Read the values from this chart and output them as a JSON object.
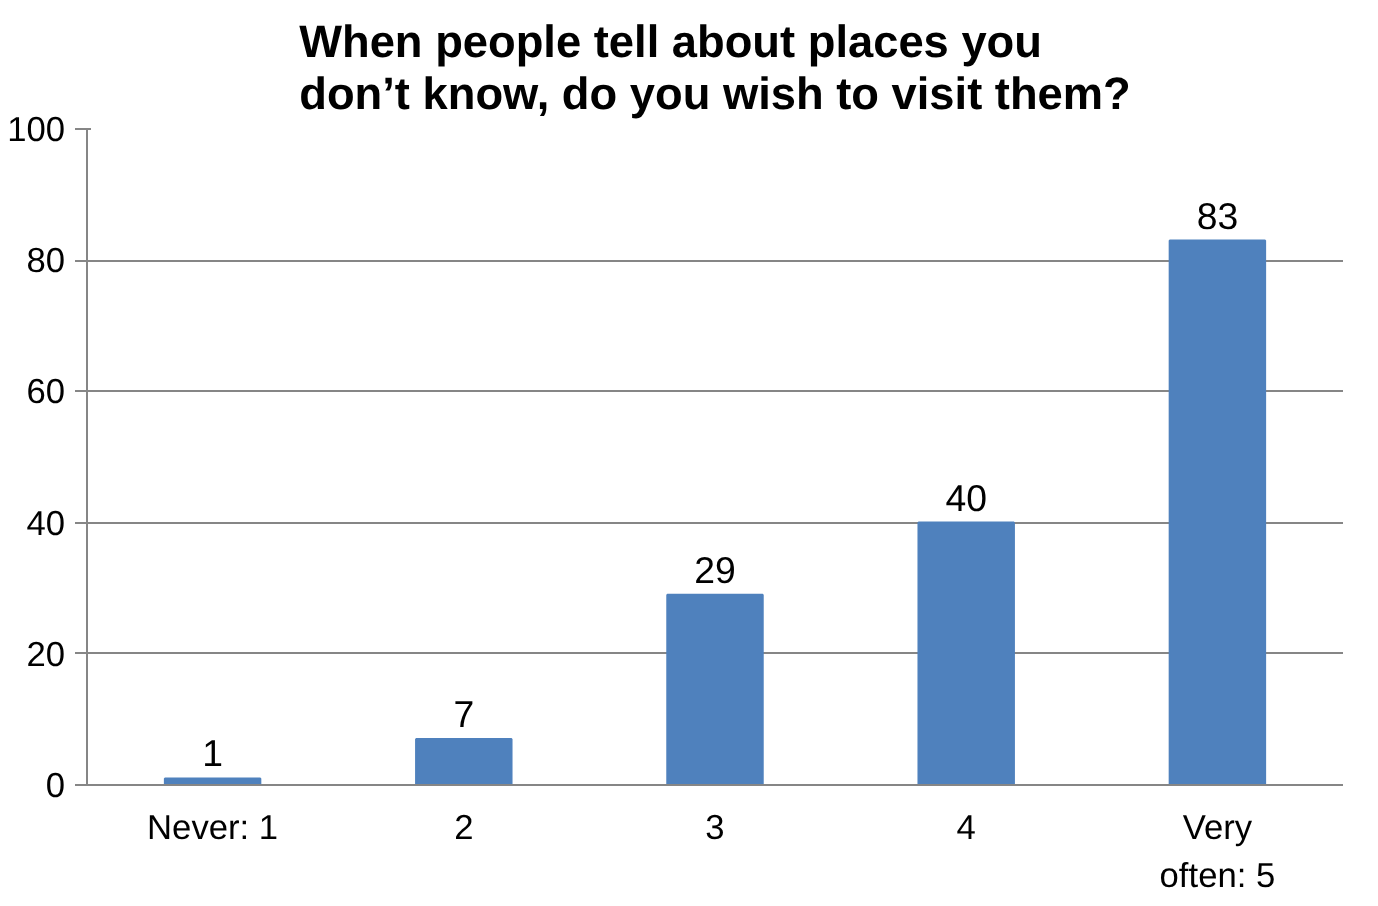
{
  "chart_data": {
    "type": "bar",
    "title": "When people tell about places you don’t know, do you wish to visit them?",
    "categories": [
      "Never: 1",
      "2",
      "3",
      "4",
      "Very often: 5"
    ],
    "values": [
      1,
      7,
      29,
      40,
      83
    ],
    "color": "#4f81bd",
    "ylim": [
      0,
      100
    ],
    "yticks": [
      0,
      20,
      40,
      60,
      80,
      100
    ],
    "grid": "y",
    "data_labels": true
  }
}
